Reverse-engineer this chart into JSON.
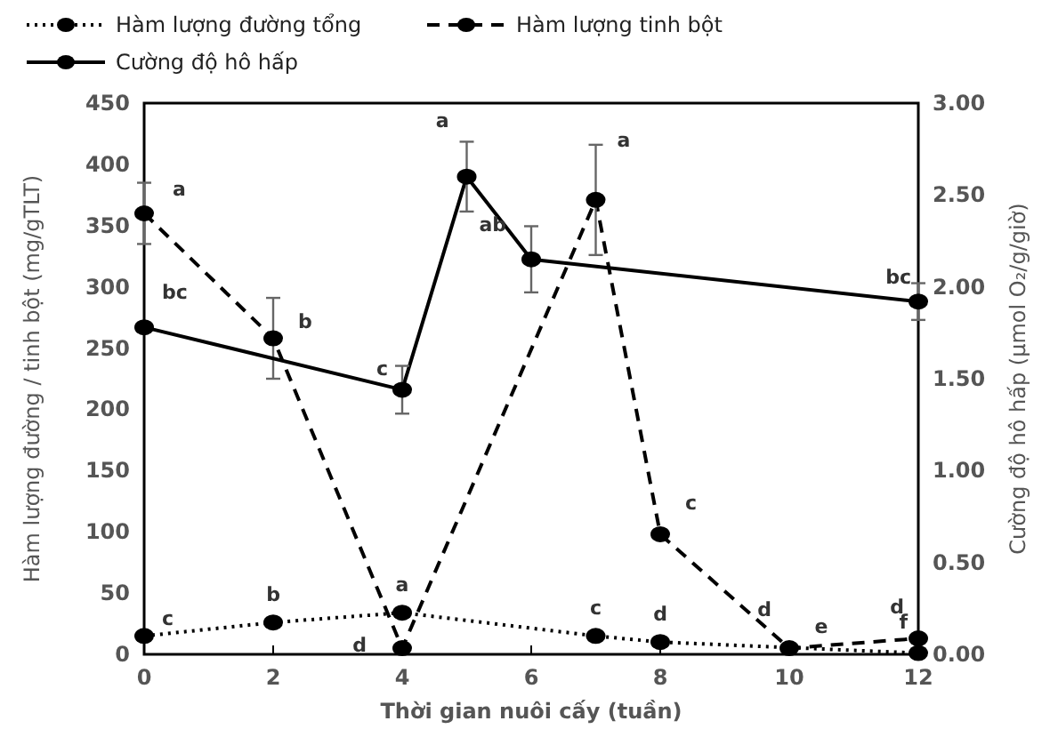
{
  "chart_data": {
    "type": "line",
    "xlabel": "Thời gian nuôi cấy (tuần)",
    "ylabel": "Hàm lượng đường / tinh bột (mg/gTLT)",
    "y2label": "Cường độ hô hấp (µmol O₂/g/giờ)",
    "xlim": [
      0,
      12
    ],
    "xticks": [
      0,
      2,
      4,
      6,
      8,
      10,
      12
    ],
    "ylim": [
      0,
      450
    ],
    "yticks": [
      0,
      50,
      100,
      150,
      200,
      250,
      300,
      350,
      400,
      450
    ],
    "y2lim": [
      0,
      3
    ],
    "y2ticks": [
      {
        "value": 0,
        "label": "0.00"
      },
      {
        "value": 0.5,
        "label": "0.50"
      },
      {
        "value": 1,
        "label": "1.00"
      },
      {
        "value": 1.5,
        "label": "1.50"
      },
      {
        "value": 2,
        "label": "2.00"
      },
      {
        "value": 2.5,
        "label": "2.50"
      },
      {
        "value": 3,
        "label": "3.00"
      }
    ],
    "grid": false,
    "legend": "top left",
    "marker": "circle",
    "series": [
      {
        "name": "Hàm lượng đường tổng",
        "color": "#000000",
        "line_style": "dotted",
        "x": [
          0,
          2,
          4,
          7,
          8,
          10,
          12
        ],
        "values": [
          15,
          26,
          34,
          15,
          10,
          null,
          1
        ]
      },
      {
        "name": "Hàm lượng tinh bột",
        "color": "#000000",
        "line_style": "dashed",
        "x": [
          0,
          2,
          4,
          7,
          8,
          10,
          12
        ],
        "values": [
          360,
          258,
          5,
          371,
          98,
          5,
          13
        ],
        "errors": [
          25,
          33,
          null,
          45,
          null,
          null,
          null
        ]
      },
      {
        "name": "Cường độ hô hấp",
        "color": "#000000",
        "line_style": "solid",
        "axis": "y2",
        "x": [
          0,
          4,
          5,
          6,
          12
        ],
        "values": [
          1.78,
          1.44,
          2.6,
          2.15,
          1.92
        ],
        "errors": [
          null,
          0.13,
          0.19,
          0.18,
          0.1
        ]
      }
    ],
    "annotations": [
      {
        "text": "c",
        "x": 0,
        "y": 15
      },
      {
        "text": "b",
        "x": 2,
        "y": 26
      },
      {
        "text": "a",
        "x": 4,
        "y": 34
      },
      {
        "text": "c",
        "x": 7,
        "y": 15
      },
      {
        "text": "d",
        "x": 8,
        "y": 10
      },
      {
        "text": "e",
        "x": 10,
        "y": 3
      },
      {
        "text": "f",
        "x": 12,
        "y": 1
      },
      {
        "text": "a",
        "x": 0,
        "y": 360
      },
      {
        "text": "b",
        "x": 2,
        "y": 258
      },
      {
        "text": "d",
        "x": 4,
        "y": 5
      },
      {
        "text": "a",
        "x": 7,
        "y": 371
      },
      {
        "text": "c",
        "x": 8,
        "y": 98
      },
      {
        "text": "d",
        "x": 10,
        "y": 5
      },
      {
        "text": "d",
        "x": 12,
        "y": 13
      },
      {
        "text": "bc",
        "x": 0,
        "y": 267
      },
      {
        "text": "c",
        "x": 4,
        "y": 216
      },
      {
        "text": "a",
        "x": 5,
        "y": 390
      },
      {
        "text": "ab",
        "x": 6,
        "y": 322
      },
      {
        "text": "bc",
        "x": 12,
        "y": 288
      }
    ]
  }
}
